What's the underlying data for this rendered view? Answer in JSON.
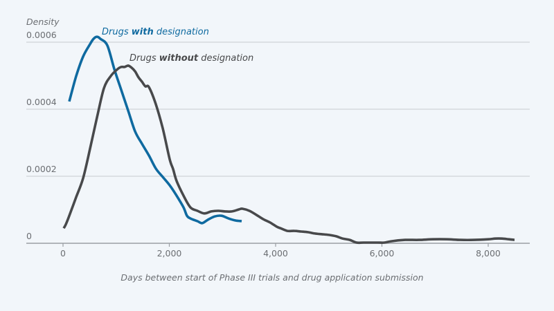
{
  "chart_data": {
    "type": "line",
    "title": "",
    "ylabel": "Density",
    "xlabel": "Days between start of Phase III trials and drug application submission",
    "xlim": [
      -700,
      8800
    ],
    "ylim": [
      0,
      0.0006
    ],
    "x_ticks": [
      0,
      2000,
      4000,
      6000,
      8000
    ],
    "x_tick_labels": [
      "0",
      "2,000",
      "4,000",
      "6,000",
      "8,000"
    ],
    "y_ticks": [
      0,
      0.0002,
      0.0004,
      0.0006
    ],
    "y_tick_labels": [
      "0",
      "0.0002",
      "0.0004",
      "0.0006"
    ],
    "grid": true,
    "legend": "inline-labels",
    "series": [
      {
        "name": "Drugs with designation",
        "label_parts": [
          {
            "text": "Drugs ",
            "bold": false
          },
          {
            "text": "with",
            "bold": true
          },
          {
            "text": " designation",
            "bold": false
          }
        ],
        "color": "#0f6aa0",
        "x": [
          117,
          248,
          378,
          508,
          574,
          639,
          704,
          834,
          964,
          1094,
          1225,
          1355,
          1485,
          1616,
          1746,
          1876,
          2007,
          2137,
          2267,
          2332,
          2397,
          2528,
          2619,
          2723,
          2854,
          2984,
          3114,
          3244,
          3362
        ],
        "y": [
          0.000423,
          0.000499,
          0.000557,
          0.000594,
          0.00061,
          0.000616,
          0.00061,
          0.00059,
          0.00052,
          0.000458,
          0.000396,
          0.000334,
          0.000297,
          0.000262,
          0.000223,
          0.000198,
          0.000173,
          0.000142,
          0.000107,
          8.2e-05,
          7.4e-05,
          6.6e-05,
          6e-05,
          7e-05,
          8e-05,
          8.2e-05,
          7.4e-05,
          6.8e-05,
          6.6e-05
        ]
      },
      {
        "name": "Drugs without designation",
        "label_parts": [
          {
            "text": "Drugs ",
            "bold": false
          },
          {
            "text": "without",
            "bold": true
          },
          {
            "text": " designation",
            "bold": false
          }
        ],
        "color": "#48494b",
        "x": [
          13,
          52,
          117,
          248,
          378,
          508,
          639,
          769,
          899,
          1029,
          1094,
          1159,
          1225,
          1290,
          1355,
          1420,
          1485,
          1550,
          1616,
          1746,
          1876,
          2007,
          2072,
          2137,
          2267,
          2397,
          2528,
          2658,
          2788,
          2919,
          3049,
          3179,
          3309,
          3374,
          3505,
          3635,
          3765,
          3896,
          4026,
          4091,
          4221,
          4352,
          4482,
          4612,
          4742,
          4873,
          5003,
          5133,
          5263,
          5394,
          5524,
          5654,
          5915,
          6045,
          6175,
          6436,
          6697,
          6957,
          7218,
          7479,
          7739,
          8000,
          8130,
          8260,
          8390,
          8495
        ],
        "y": [
          4.5e-05,
          5.6e-05,
          8.2e-05,
          0.000138,
          0.000194,
          0.000282,
          0.000375,
          0.000462,
          0.000499,
          0.00052,
          0.000526,
          0.000526,
          0.00053,
          0.000524,
          0.000513,
          0.000495,
          0.000482,
          0.000468,
          0.000466,
          0.000415,
          0.000343,
          0.000251,
          0.000221,
          0.000186,
          0.000142,
          0.000107,
          9.7e-05,
          8.9e-05,
          9.5e-05,
          9.7e-05,
          9.5e-05,
          9.5e-05,
          0.000101,
          0.000103,
          9.7e-05,
          8.5e-05,
          7.2e-05,
          6.2e-05,
          4.9e-05,
          4.5e-05,
          3.7e-05,
          3.7e-05,
          3.5e-05,
          3.3e-05,
          2.9e-05,
          2.7e-05,
          2.5e-05,
          2.1e-05,
          1.4e-05,
          1e-05,
          2e-06,
          2e-06,
          2e-06,
          2e-06,
          6e-06,
          1e-05,
          1e-05,
          1.2e-05,
          1.2e-05,
          1e-05,
          1e-05,
          1.2e-05,
          1.4e-05,
          1.4e-05,
          1.2e-05,
          1e-05
        ]
      }
    ]
  }
}
